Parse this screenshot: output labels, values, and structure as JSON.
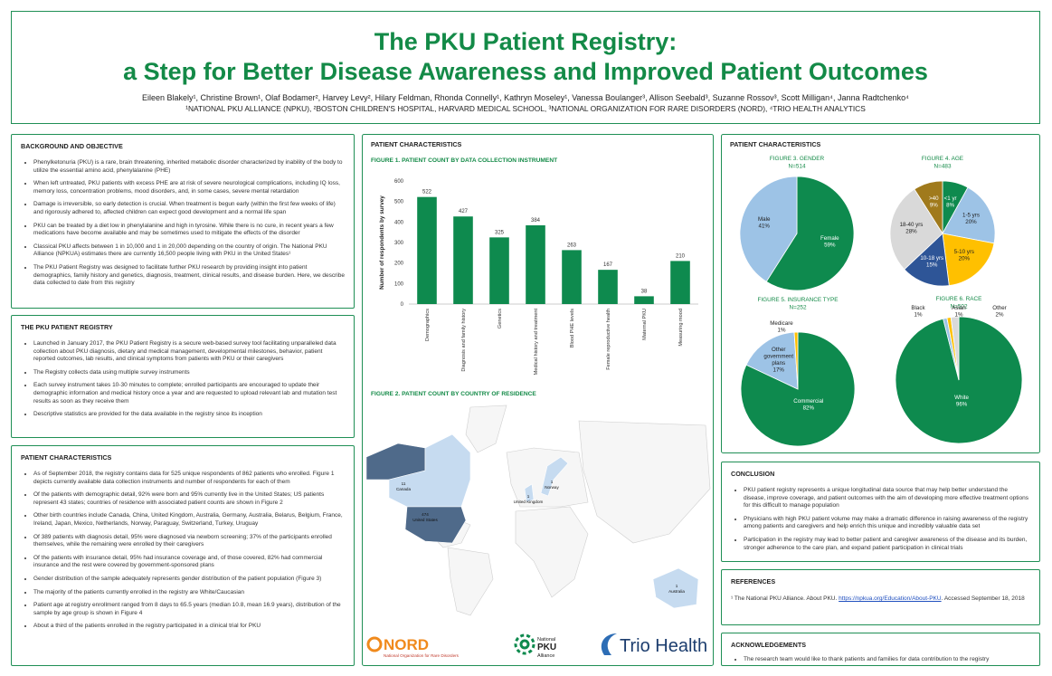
{
  "header": {
    "title_lines": [
      "The PKU Patient Registry:",
      "a Step for Better Disease Awareness and Improved Patient Outcomes"
    ],
    "authors": "Eileen Blakely¹, Christine Brown¹, Olaf Bodamer², Harvey Levy², Hilary Feldman, Rhonda Connelly¹, Kathryn Moseley¹, Vanessa Boulanger³, Allison Seebald³, Suzanne Rossov³, Scott Milligan⁴, Janna Radtchenko⁴",
    "affiliations": "¹NATIONAL PKU ALLIANCE (NPKU), ²BOSTON CHILDREN'S HOSPITAL, HARVARD MEDICAL SCHOOL, ³NATIONAL ORGANIZATION FOR RARE DISORDERS (NORD), ⁴TRIO HEALTH ANALYTICS"
  },
  "sections": {
    "background": {
      "heading": "BACKGROUND AND OBJECTIVE",
      "bullets": [
        "Phenylketonuria (PKU) is a rare, brain threatening, inherited metabolic disorder characterized by inability of the body to utilize the essential amino acid, phenylalanine (PHE)",
        "When left untreated, PKU patients with excess PHE are at risk of severe neurological complications, including IQ loss, memory loss, concentration problems, mood disorders, and, in some cases, severe mental retardation",
        "Damage is irreversible, so early detection is crucial. When treatment is begun early (within the first few weeks of life) and rigorously adhered to, affected children can expect good development and a normal life span",
        "PKU can be treated by a diet low in phenylalanine and high in tyrosine. While there is no cure, in recent years a few medications have become available and may be sometimes used to mitigate the effects of the disorder",
        "Classical PKU affects between 1 in 10,000 and 1 in 20,000 depending on the country of origin. The National PKU Alliance (NPKUA) estimates there are currently 16,500 people living with PKU in the United States¹",
        "The PKU Patient Registry was designed to facilitate further PKU research by providing insight into patient demographics, family history and genetics, diagnosis, treatment, clinical results, and disease burden. Here, we describe data collected to date from this registry"
      ]
    },
    "registry": {
      "heading": "THE PKU PATIENT REGISTRY",
      "bullets": [
        "Launched in January 2017, the PKU Patient Registry is a secure web-based survey tool facilitating unparalleled data collection about PKU diagnosis, dietary and medical management, developmental milestones, behavior, patient reported outcomes, lab results, and clinical symptoms from patients with PKU or their caregivers",
        "The Registry collects data using multiple survey instruments",
        "Each survey instrument takes 10-30 minutes to complete; enrolled participants are encouraged to update their demographic information and medical history once a year and are requested to upload relevant lab and mutation test results as soon as they receive them",
        "Descriptive statistics are provided for the data available in the registry since its inception"
      ]
    },
    "patient_characteristics": {
      "heading": "PATIENT CHARACTERISTICS",
      "bullets": [
        "As of September 2018, the registry contains data for 525 unique respondents of 862 patients who enrolled. Figure 1 depicts currently available data collection instruments and number of respondents for each of them",
        "Of the patients with demographic detail, 92% were born and 95% currently live in the United States; US patients represent 43 states; countries of residence with associated patient counts are shown in Figure 2",
        "Other birth countries include Canada, China, United Kingdom, Australia, Germany, Australia, Belarus, Belgium, France, Ireland, Japan, Mexico, Netherlands, Norway, Paraguay, Switzerland, Turkey, Uruguay",
        "Of 389 patients with diagnosis detail, 95% were diagnosed via newborn screening; 37% of the participants enrolled themselves, while the remaining were enrolled by their caregivers",
        "Of the patients with insurance detail, 95% had insurance coverage and, of those covered, 82% had commercial insurance and the rest were covered by government-sponsored plans",
        "Gender distribution of the sample adequately represents gender distribution of the patient population (Figure 3)",
        "The majority of the patients currently enrolled in the registry are White/Caucasian",
        "Patient age at registry enrollment ranged from 8 days to 65.5 years (median 10.8, mean 16.9 years), distribution of the sample by age group is shown in Figure 4",
        "About a third of the patients enrolled in the registry participated in a clinical trial for PKU"
      ]
    },
    "conclusion": {
      "heading": "CONCLUSION",
      "bullets": [
        "PKU patient registry represents a unique longitudinal data source that may help better understand the disease, improve coverage, and patient outcomes with the aim of developing more effective treatment options for this difficult to manage population",
        "Physicians with high PKU patient volume may make a dramatic difference in raising awareness of the registry among patients and caregivers and help enrich this unique and incredibly valuable data set",
        "Participation in the registry may lead to better patient and caregiver awareness of the disease and its burden, stronger adherence to the care plan, and expand patient participation in clinical trials"
      ]
    },
    "references": {
      "heading": "REFERENCES",
      "text_before": "¹ The National PKU Alliance. About PKU.",
      "link": "https://npkua.org/Education/About-PKU",
      "text_after": ". Accessed September 18, 2018"
    },
    "acknowledgements": {
      "heading": "ACKNOWLEDGEMENTS",
      "bullets": [
        "The research team would like to thank patients and families for data contribution to the registry"
      ]
    }
  },
  "results": {
    "heading_middle": "PATIENT CHARACTERISTICS",
    "heading_right": "PATIENT CHARACTERISTICS"
  },
  "figures": [
    {
      "type": "bar",
      "title": "FIGURE 1. PATIENT COUNT BY DATA COLLECTION INSTRUMENT",
      "ylabel": "Number of respondents by survey",
      "categories": [
        "Demographics",
        "Diagnosis and family history",
        "Genetics",
        "Medical history and treatment",
        "Blood PHE levels",
        "Female reproductive health",
        "Maternal PKU",
        "Measuring mood"
      ],
      "values": [
        522,
        427,
        325,
        384,
        263,
        167,
        38,
        210
      ],
      "color": "#0e8a4e",
      "ylim": [
        0,
        600
      ],
      "yticks": [
        0,
        100,
        200,
        300,
        400,
        500,
        600
      ]
    },
    {
      "type": "map",
      "title": "FIGURE 2. PATIENT COUNT BY COUNTRY OF RESIDENCE",
      "countries": [
        "Canada",
        "United States",
        "Norway",
        "United Kingdom",
        "Australia"
      ],
      "values": [
        11,
        474,
        1,
        1,
        1
      ]
    },
    {
      "type": "pie",
      "title": "FIGURE 3. GENDER",
      "subtitle": "N=514",
      "categories": [
        "Female",
        "Male"
      ],
      "values": [
        59,
        41
      ],
      "value_labels": [
        "59%",
        "41%"
      ],
      "colors": [
        "#0e8a4e",
        "#9dc3e6"
      ]
    },
    {
      "type": "pie",
      "title": "FIGURE 4. AGE",
      "subtitle": "N=483",
      "categories": [
        "<1 yr",
        "1-5 yrs",
        "5-10 yrs",
        "10-18 yrs",
        "18-40 yrs",
        ">40"
      ],
      "values": [
        8,
        20,
        20,
        15,
        28,
        9
      ],
      "value_labels": [
        "8%",
        "20%",
        "20%",
        "15%",
        "28%",
        "9%"
      ],
      "colors": [
        "#0e8a4e",
        "#9dc3e6",
        "#ffc000",
        "#2e5597",
        "#d9d9d9",
        "#a07a1c"
      ]
    },
    {
      "type": "pie",
      "title": "FIGURE 5. INSURANCE TYPE",
      "subtitle": "N=252",
      "categories": [
        "Commercial",
        "Other government plans",
        "Medicare"
      ],
      "values": [
        82,
        17,
        1
      ],
      "value_labels": [
        "82%",
        "17%",
        "1%"
      ],
      "colors": [
        "#0e8a4e",
        "#9dc3e6",
        "#ffc000"
      ]
    },
    {
      "type": "pie",
      "title": "FIGURE 6. RACE",
      "subtitle": "N=502",
      "categories": [
        "White",
        "Black",
        "Asian",
        "Other"
      ],
      "values": [
        96,
        1,
        1,
        2
      ],
      "value_labels": [
        "96%",
        "1%",
        "1%",
        "2%"
      ],
      "colors": [
        "#0e8a4e",
        "#9dc3e6",
        "#ffc000",
        "#d9d9d9"
      ]
    }
  ],
  "logos": {
    "nord": "NORD",
    "nord_sub": "National Organization for Rare Disorders",
    "npku": [
      "National",
      "PKU",
      "Alliance"
    ],
    "trio": "Trio Health"
  }
}
